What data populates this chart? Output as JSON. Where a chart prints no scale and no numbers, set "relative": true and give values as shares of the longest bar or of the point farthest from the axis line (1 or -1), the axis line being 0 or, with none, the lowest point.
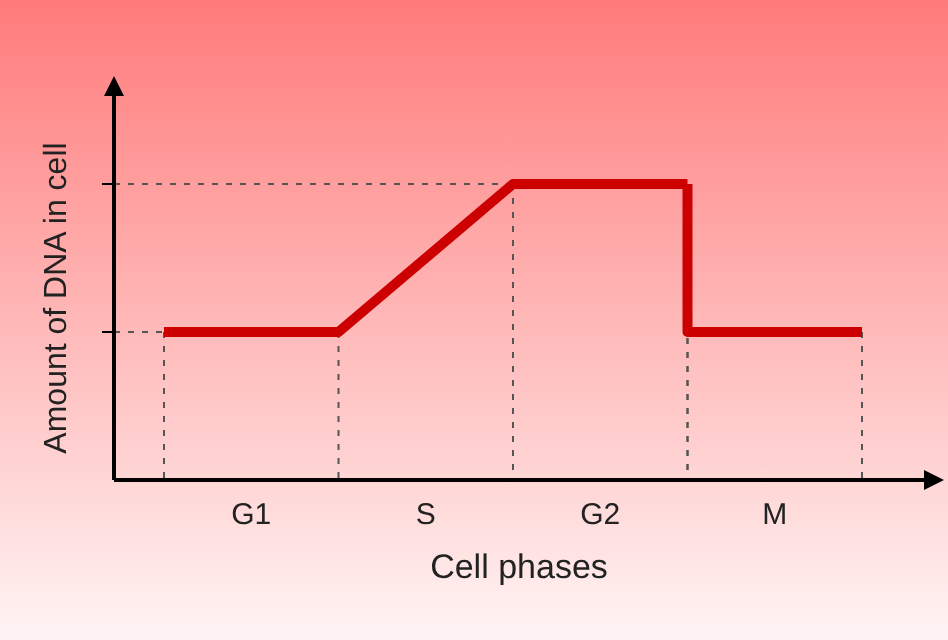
{
  "chart_data": {
    "type": "line",
    "relative": true,
    "xlabel": "Cell phases",
    "ylabel": "Amount of DNA in cell",
    "categories": [
      null,
      "G1",
      null,
      "S",
      null,
      "G2",
      null,
      "M",
      null
    ],
    "tick_labels": "x",
    "grid": true,
    "marker": "none",
    "line_style": "solid",
    "series": [
      {
        "color": "#cc0000",
        "values": [
          0.5,
          0.5,
          0.5,
          0.75,
          1,
          1,
          1,
          null,
          null
        ]
      },
      {
        "type": "step",
        "color": "#cc0000",
        "values": [
          null,
          null,
          null,
          null,
          null,
          null,
          1,
          0.5,
          0.5
        ]
      }
    ]
  }
}
